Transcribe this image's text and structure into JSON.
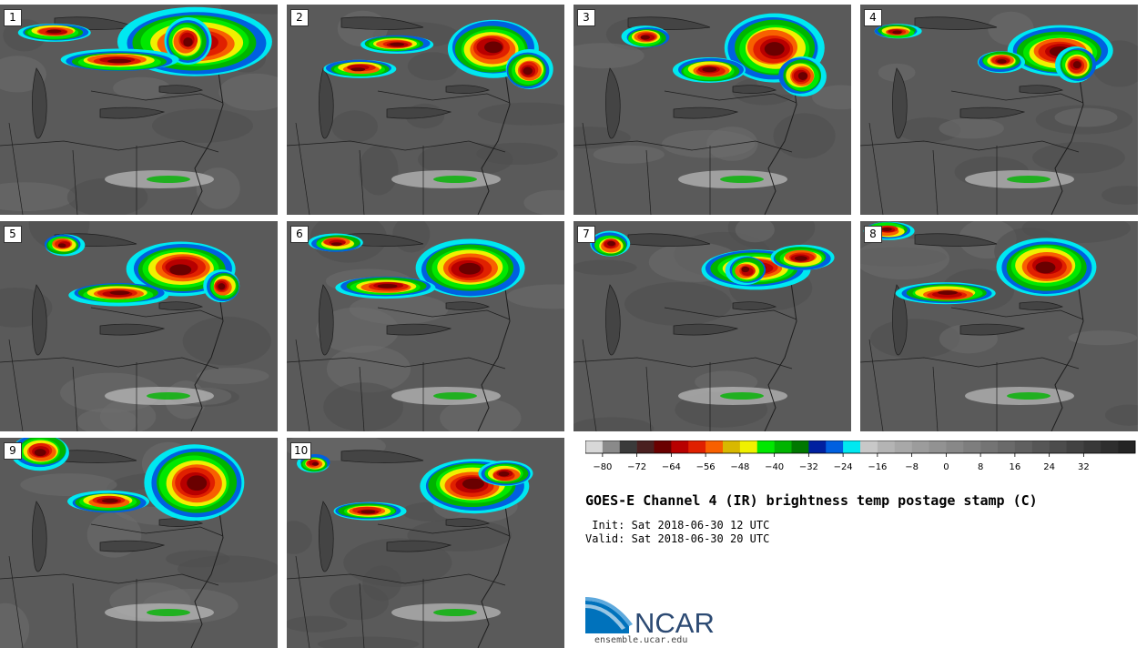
{
  "title": "GOES-E Channel 4 (IR) brightness temp postage stamp (C)",
  "init": {
    "label": " Init:",
    "value": "Sat 2018-06-30 12 UTC"
  },
  "valid": {
    "label": "Valid:",
    "value": "Sat 2018-06-30 20 UTC"
  },
  "members": [
    "1",
    "2",
    "3",
    "4",
    "5",
    "6",
    "7",
    "8",
    "9",
    "10"
  ],
  "colorbar": {
    "colors": [
      "#d8d8d8",
      "#8a8a8a",
      "#3a3a3a",
      "#4a2020",
      "#6a0000",
      "#b80000",
      "#e02000",
      "#f86000",
      "#d8b800",
      "#f0f000",
      "#00e800",
      "#00b400",
      "#007800",
      "#0020a0",
      "#0060e0",
      "#00e8f0",
      "#c8c8c8",
      "#b4b4b4",
      "#a8a8a8",
      "#9c9c9c",
      "#929292",
      "#888888",
      "#7e7e7e",
      "#747474",
      "#6a6a6a",
      "#606060",
      "#565656",
      "#4c4c4c",
      "#424242",
      "#383838",
      "#2e2e2e",
      "#242424"
    ],
    "ticks": [
      "−80",
      "−72",
      "−64",
      "−56",
      "−48",
      "−40",
      "−32",
      "−24",
      "−16",
      "−8",
      "0",
      "8",
      "16",
      "24",
      "32"
    ]
  },
  "logo": {
    "text": "NCAR",
    "url": "ensemble.ucar.edu",
    "brand_color": "#0072bc"
  }
}
